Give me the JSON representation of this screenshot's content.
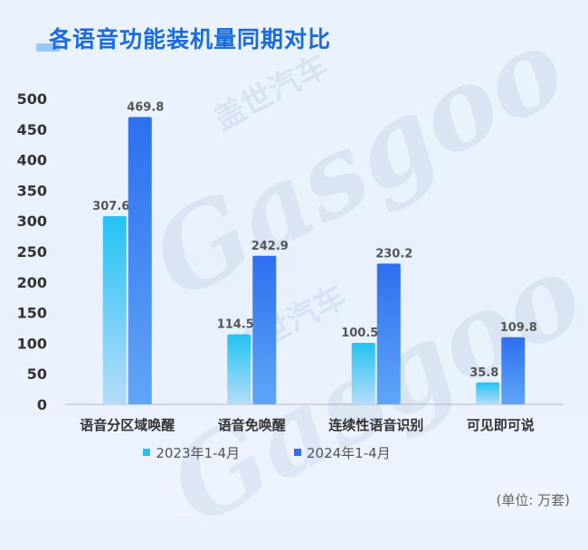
{
  "title": "各语音功能装机量同期对比",
  "unit_note": "(单位: 万套)",
  "watermark": {
    "brand_latin": "Gasgoo",
    "brand_cn": "盖世汽车"
  },
  "colors": {
    "series1_top": "#22c3f3",
    "series1_bottom": "#b6dcfa",
    "series2_top": "#2d6ff0",
    "series2_bottom": "#5fa6f6",
    "axis": "#b0b8c4",
    "tick_text": "#333333",
    "value_text": "#555555"
  },
  "chart_data": {
    "type": "bar",
    "categories": [
      "语音分区域唤醒",
      "语音免唤醒",
      "连续性语音识别",
      "可见即可说"
    ],
    "series": [
      {
        "name": "2023年1-4月",
        "values": [
          307.6,
          114.5,
          100.5,
          35.8
        ]
      },
      {
        "name": "2024年1-4月",
        "values": [
          469.8,
          242.9,
          230.2,
          109.8
        ]
      }
    ],
    "title": "各语音功能装机量同期对比",
    "xlabel": "",
    "ylabel": "",
    "ylim": [
      0,
      500
    ],
    "yticks": [
      0,
      50,
      100,
      150,
      200,
      250,
      300,
      350,
      400,
      450,
      500
    ],
    "grid": false,
    "legend": "bottom"
  }
}
